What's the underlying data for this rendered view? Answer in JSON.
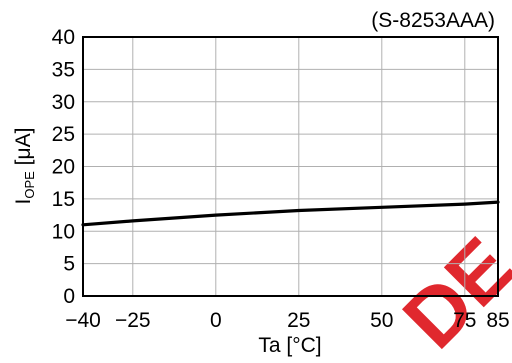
{
  "chart_data": {
    "type": "line",
    "title": "(S-8253AAA)",
    "xlabel": "Ta [°C]",
    "ylabel": {
      "main": "I",
      "subscript": "OPE",
      "unit": " [μA]"
    },
    "xlim": [
      -40,
      85
    ],
    "ylim": [
      0,
      40
    ],
    "xticks": [
      -40,
      -25,
      0,
      25,
      50,
      75,
      85
    ],
    "xtick_labels": [
      "−40",
      "−25",
      "0",
      "25",
      "50",
      "75",
      "85"
    ],
    "yticks": [
      0,
      5,
      10,
      15,
      20,
      25,
      30,
      35,
      40
    ],
    "ytick_labels": [
      "0",
      "5",
      "10",
      "15",
      "20",
      "25",
      "30",
      "35",
      "40"
    ],
    "grid": true,
    "series": [
      {
        "x": [
          -40,
          -25,
          0,
          25,
          50,
          75,
          85
        ],
        "y": [
          11.0,
          11.6,
          12.5,
          13.2,
          13.7,
          14.2,
          14.5
        ]
      }
    ]
  },
  "watermark": {
    "text": "DE",
    "color": "#e0282e"
  }
}
